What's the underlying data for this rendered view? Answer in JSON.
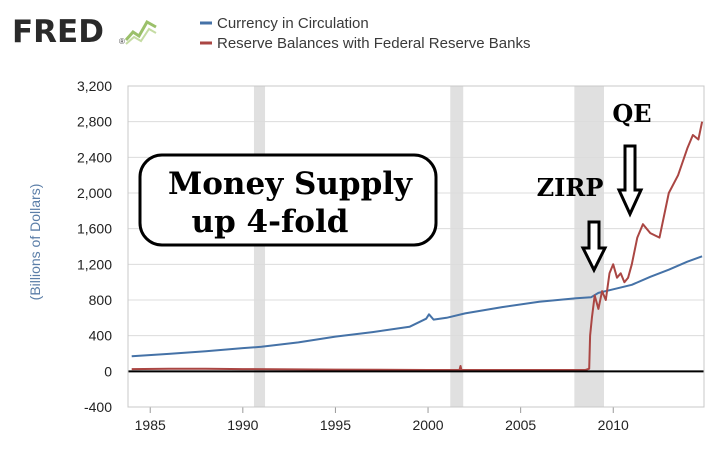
{
  "brand": {
    "logo_text": "FRED",
    "logo_mark": "®"
  },
  "chart_data": {
    "type": "line",
    "title": "",
    "xlabel": "",
    "ylabel": "(Billions of Dollars)",
    "xlim": [
      1983.8,
      2014.9
    ],
    "ylim": [
      -400,
      3200
    ],
    "x_ticks": [
      "1985",
      "1990",
      "1995",
      "2000",
      "2005",
      "2010"
    ],
    "x_tick_values": [
      1985,
      1990,
      1995,
      2000,
      2005,
      2010
    ],
    "y_ticks": [
      "-400",
      "0",
      "400",
      "800",
      "1,200",
      "1,600",
      "2,000",
      "2,400",
      "2,800",
      "3,200"
    ],
    "y_tick_values": [
      -400,
      0,
      400,
      800,
      1200,
      1600,
      2000,
      2400,
      2800,
      3200
    ],
    "recessions": [
      [
        1990.6,
        1991.2
      ],
      [
        2001.2,
        2001.9
      ],
      [
        2007.9,
        2009.5
      ]
    ],
    "grid": true,
    "legend_position": "top",
    "series": [
      {
        "name": "Currency in Circulation",
        "color": "#4572a7",
        "x": [
          1984,
          1986,
          1988,
          1990,
          1991,
          1993,
          1995,
          1997,
          1999,
          1999.9,
          2000.05,
          2000.3,
          2001,
          2002,
          2004,
          2006,
          2008,
          2008.8,
          2009.2,
          2010,
          2011,
          2012,
          2013,
          2014,
          2014.8
        ],
        "y": [
          170,
          195,
          225,
          260,
          275,
          325,
          390,
          440,
          500,
          590,
          640,
          580,
          600,
          650,
          720,
          780,
          820,
          830,
          880,
          920,
          970,
          1060,
          1140,
          1230,
          1290
        ]
      },
      {
        "name": "Reserve Balances with Federal Reserve Banks",
        "color": "#aa4643",
        "x": [
          1984,
          1986,
          1988,
          1990,
          1995,
          2000,
          2001.7,
          2001.75,
          2001.8,
          2005,
          2008.5,
          2008.7,
          2008.75,
          2008.85,
          2009,
          2009.2,
          2009.4,
          2009.6,
          2009.8,
          2010,
          2010.2,
          2010.4,
          2010.6,
          2010.8,
          2011,
          2011.3,
          2011.6,
          2012,
          2012.5,
          2013,
          2013.5,
          2014,
          2014.3,
          2014.6,
          2014.8
        ],
        "y": [
          25,
          30,
          30,
          25,
          20,
          15,
          15,
          60,
          15,
          15,
          15,
          30,
          400,
          600,
          850,
          700,
          900,
          800,
          1100,
          1200,
          1050,
          1100,
          1000,
          1050,
          1200,
          1500,
          1650,
          1550,
          1500,
          2000,
          2200,
          2500,
          2650,
          2600,
          2800
        ]
      }
    ],
    "annotations": [
      {
        "text": "Money Supply",
        "style": "box-title"
      },
      {
        "text": "up 4-fold",
        "style": "box-subtitle"
      },
      {
        "text": "ZIRP",
        "style": "arrow-label",
        "x": 2009.0
      },
      {
        "text": "QE",
        "style": "arrow-label",
        "x": 2010.9
      }
    ]
  }
}
